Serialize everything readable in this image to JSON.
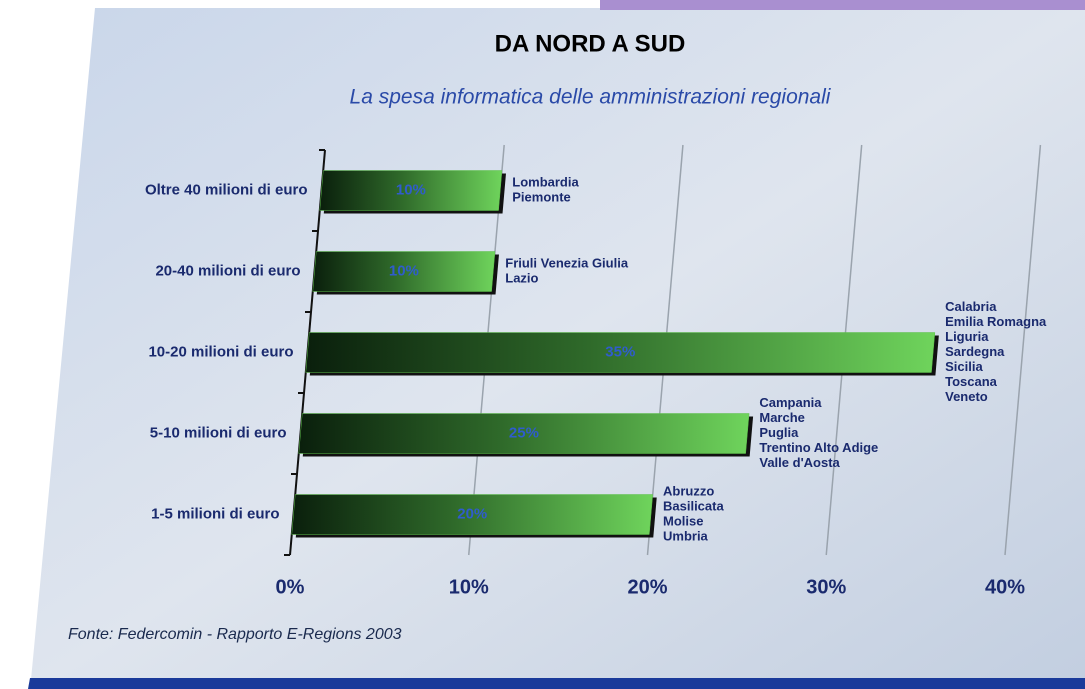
{
  "chart_data": {
    "type": "bar",
    "orientation": "horizontal",
    "title": "DA NORD A SUD",
    "subtitle": "La spesa informatica delle amministrazioni regionali",
    "source": "Fonte: Federcomin - Rapporto E-Regions 2003",
    "categories": [
      "Oltre 40 milioni di euro",
      "20-40 milioni di euro",
      "10-20 milioni di euro",
      "5-10 milioni di euro",
      "1-5 milioni di euro"
    ],
    "values": [
      10,
      10,
      35,
      25,
      20
    ],
    "value_labels": [
      "10%",
      "10%",
      "35%",
      "25%",
      "20%"
    ],
    "annotations": [
      [
        "Lombardia",
        "Piemonte"
      ],
      [
        "Friuli Venezia Giulia",
        "Lazio"
      ],
      [
        "Calabria",
        "Emilia Romagna",
        "Liguria",
        "Sardegna",
        "Sicilia",
        "Toscana",
        "Veneto"
      ],
      [
        "Campania",
        "Marche",
        "Puglia",
        "Trentino Alto Adige",
        "Valle d'Aosta"
      ],
      [
        "Abruzzo",
        "Basilicata",
        "Molise",
        "Umbria"
      ]
    ],
    "color": "#5cc04a",
    "xlim": [
      0,
      40
    ],
    "xticks": [
      {
        "value": 0,
        "label": "0%"
      },
      {
        "value": 10,
        "label": "10%"
      },
      {
        "value": 20,
        "label": "20%"
      },
      {
        "value": 30,
        "label": "30%"
      },
      {
        "value": 40,
        "label": "40%"
      }
    ],
    "grid": true
  }
}
